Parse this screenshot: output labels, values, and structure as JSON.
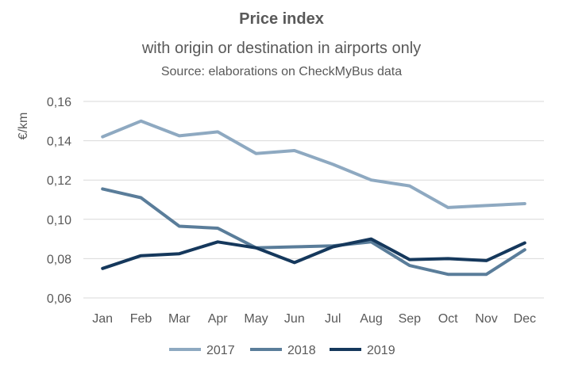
{
  "chart_data": {
    "type": "line",
    "title": "Price index",
    "subtitle": "with origin or destination in airports only",
    "source": "Source: elaborations on CheckMyBus data",
    "xlabel": "",
    "ylabel": "€/km",
    "categories": [
      "Jan",
      "Feb",
      "Mar",
      "Apr",
      "May",
      "Jun",
      "Jul",
      "Aug",
      "Sep",
      "Oct",
      "Nov",
      "Dec"
    ],
    "ylim": [
      0.06,
      0.16
    ],
    "yticks": [
      "0,06",
      "0,08",
      "0,10",
      "0,12",
      "0,14",
      "0,16"
    ],
    "grid": true,
    "legend_position": "bottom",
    "series": [
      {
        "name": "2017",
        "color": "#8EA9C1",
        "values": [
          0.142,
          0.15,
          0.1425,
          0.1445,
          0.1335,
          0.135,
          0.128,
          0.12,
          0.117,
          0.106,
          0.107,
          0.108
        ]
      },
      {
        "name": "2018",
        "color": "#5A7D9A",
        "values": [
          0.1155,
          0.111,
          0.0965,
          0.0955,
          0.0855,
          0.086,
          0.0865,
          0.0885,
          0.0765,
          0.072,
          0.072,
          0.0845
        ]
      },
      {
        "name": "2019",
        "color": "#15385C",
        "values": [
          0.075,
          0.0815,
          0.0825,
          0.0885,
          0.0855,
          0.078,
          0.086,
          0.09,
          0.0795,
          0.08,
          0.079,
          0.088
        ]
      }
    ]
  }
}
